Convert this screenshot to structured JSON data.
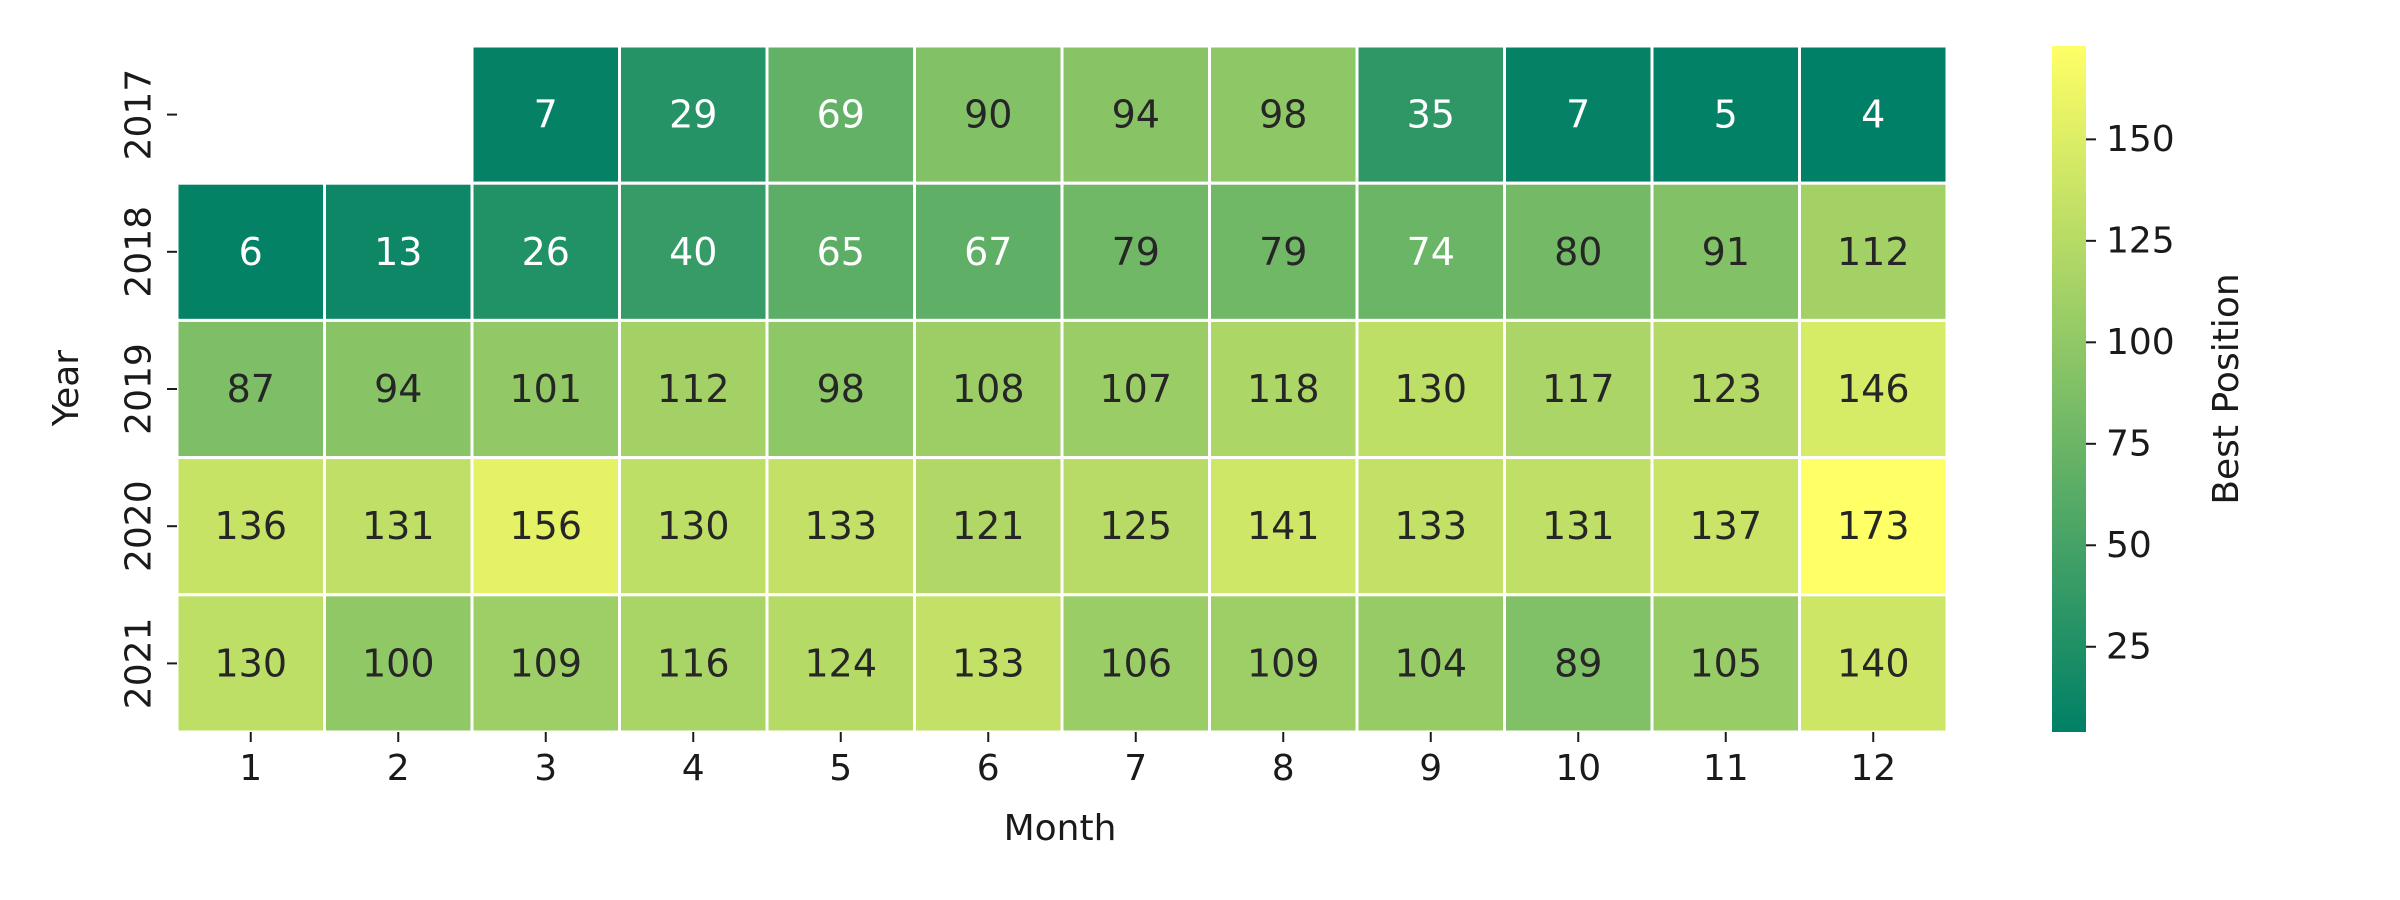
{
  "chart_data": {
    "type": "heatmap",
    "title": "",
    "xlabel": "Month",
    "ylabel": "Year",
    "colorbar_label": "Best Position",
    "x_categories": [
      "1",
      "2",
      "3",
      "4",
      "5",
      "6",
      "7",
      "8",
      "9",
      "10",
      "11",
      "12"
    ],
    "y_categories": [
      "2017",
      "2018",
      "2019",
      "2020",
      "2021"
    ],
    "values": [
      [
        null,
        null,
        7,
        29,
        69,
        90,
        94,
        98,
        35,
        7,
        5,
        4
      ],
      [
        6,
        13,
        26,
        40,
        65,
        67,
        79,
        79,
        74,
        80,
        91,
        112
      ],
      [
        87,
        94,
        101,
        112,
        98,
        108,
        107,
        118,
        130,
        117,
        123,
        146
      ],
      [
        136,
        131,
        156,
        130,
        133,
        121,
        125,
        141,
        133,
        131,
        137,
        173
      ],
      [
        130,
        100,
        109,
        116,
        124,
        133,
        106,
        109,
        104,
        89,
        105,
        140
      ]
    ],
    "color_range": [
      4,
      173
    ],
    "colorbar_ticks": [
      "25",
      "50",
      "75",
      "100",
      "125",
      "150"
    ],
    "colormap": [
      "#008066",
      "#ffff66"
    ],
    "grid": false,
    "legend": "colorbar-right"
  }
}
